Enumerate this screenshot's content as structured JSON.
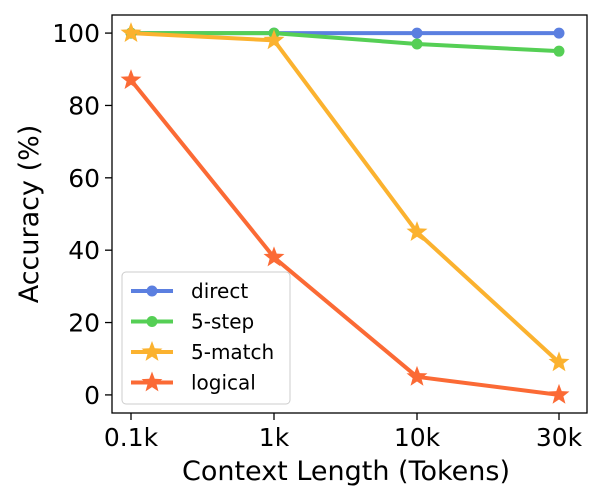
{
  "chart_data": {
    "type": "line",
    "title": "",
    "xlabel": "Context Length (Tokens)",
    "ylabel": "Accuracy (%)",
    "categories": [
      "0.1k",
      "1k",
      "10k",
      "30k"
    ],
    "yticks": [
      0,
      20,
      40,
      60,
      80,
      100
    ],
    "ylim": [
      -5,
      105
    ],
    "grid": false,
    "legend_position": "lower-left",
    "series": [
      {
        "name": "direct",
        "marker": "circle",
        "color": "#5b7fe0",
        "values": [
          100,
          100,
          100,
          100
        ]
      },
      {
        "name": "5-step",
        "marker": "circle",
        "color": "#55cf55",
        "values": [
          100,
          100,
          97,
          95
        ]
      },
      {
        "name": "5-match",
        "marker": "star",
        "color": "#fbb22f",
        "values": [
          100,
          98,
          45,
          9
        ]
      },
      {
        "name": "logical",
        "marker": "star",
        "color": "#fb6a35",
        "values": [
          87,
          38,
          5,
          0
        ]
      }
    ]
  }
}
